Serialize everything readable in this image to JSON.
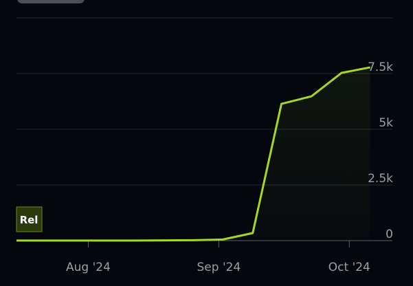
{
  "chart_data": {
    "type": "line",
    "x": [
      7.45,
      7.68,
      7.9,
      8.13,
      8.35,
      8.58,
      8.81,
      9.03,
      9.26,
      9.48,
      9.71,
      9.94,
      10.16
    ],
    "series": [
      {
        "name": "Rel",
        "color": "#a6d81e",
        "values": [
          5,
          5,
          5,
          5,
          5,
          10,
          20,
          50,
          340,
          6140,
          6480,
          7530,
          7780
        ]
      }
    ],
    "xlim": [
      7.45,
      10.33
    ],
    "xticks": [
      {
        "value": 8,
        "label": "Aug '24"
      },
      {
        "value": 9,
        "label": "Sep '24"
      },
      {
        "value": 10,
        "label": "Oct '24"
      }
    ],
    "ylim": [
      0,
      10000
    ],
    "yticks": [
      0,
      {
        "value": 2500,
        "label": "2.5k"
      },
      {
        "value": 5000,
        "label": "5k"
      },
      {
        "value": 7500,
        "label": "7.5k"
      }
    ],
    "grid": true
  }
}
